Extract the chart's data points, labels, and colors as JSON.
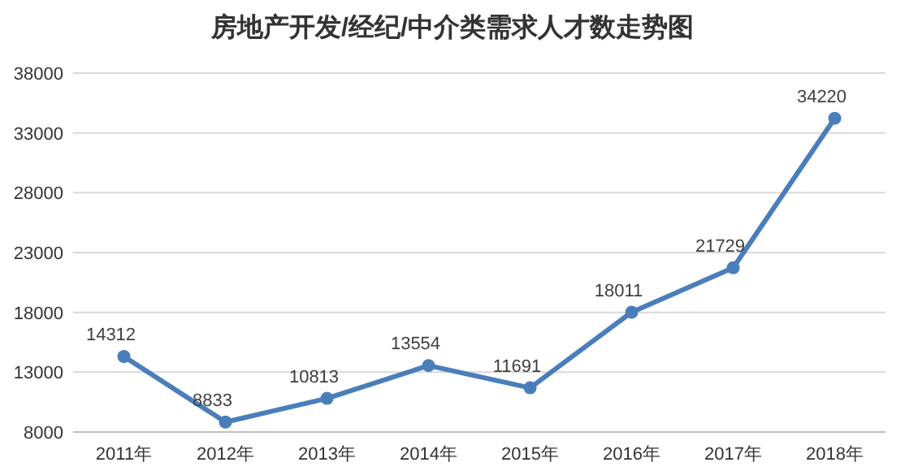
{
  "chart_data": {
    "type": "line",
    "title": "房地产开发/经纪/中介类需求人才数走势图",
    "categories": [
      "2011年",
      "2012年",
      "2013年",
      "2014年",
      "2015年",
      "2016年",
      "2017年",
      "2018年"
    ],
    "series": [
      {
        "color": "#4a7ebb",
        "values": [
          14312,
          8833,
          10813,
          13554,
          11691,
          18011,
          21729,
          34220
        ]
      }
    ],
    "ylim": [
      8000,
      38000
    ],
    "yticks": [
      8000,
      13000,
      18000,
      23000,
      28000,
      33000,
      38000
    ],
    "grid": "y",
    "marker": "circle",
    "line_style": "solid",
    "data_labels": true
  }
}
